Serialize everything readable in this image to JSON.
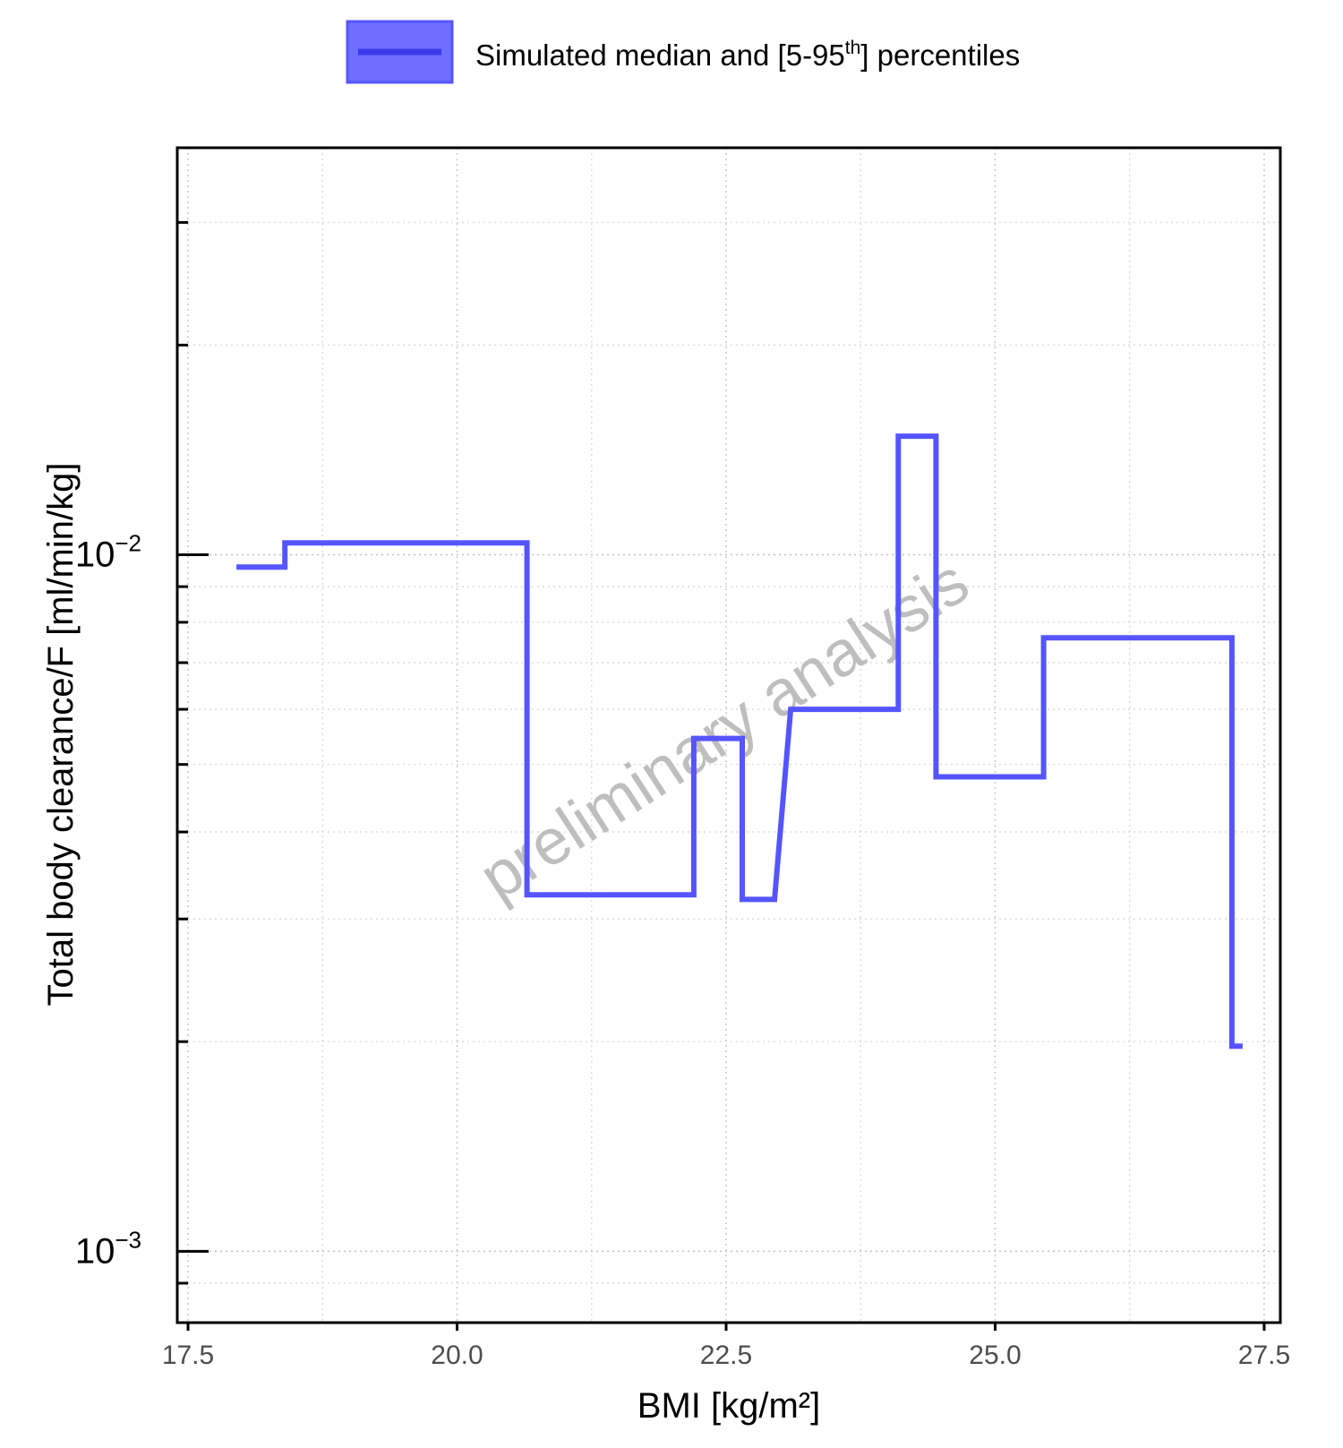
{
  "chart_data": {
    "type": "line",
    "xlabel": "BMI [kg/m²]",
    "ylabel": "Total body clearance/F [ml/min/kg]",
    "xlim": [
      17.4,
      27.65
    ],
    "ylim": [
      0.00079,
      0.0384
    ],
    "yscale": "log",
    "xticks": [
      17.5,
      20.0,
      22.5,
      25.0,
      27.5
    ],
    "xtick_labels": [
      "17.5",
      "20.0",
      "22.5",
      "25.0",
      "27.5"
    ],
    "yticks_major": [
      {
        "value": 0.01,
        "base": "10",
        "exp": "−2"
      },
      {
        "value": 0.001,
        "base": "10",
        "exp": "−3"
      }
    ],
    "yticks_minor": [
      0.03,
      0.02,
      0.009,
      0.008,
      0.007,
      0.006,
      0.005,
      0.004,
      0.003,
      0.002,
      0.0009
    ],
    "grid": true,
    "legend": {
      "position": "top-center",
      "label_main": "Simulated median and [5-95",
      "label_sup": "th",
      "label_end": "] percentiles",
      "color": "#5555ff"
    },
    "watermark": "preliminary analysis",
    "series": [
      {
        "color": "#5555ff",
        "x": [
          17.95,
          18.4,
          18.4,
          20.65,
          20.65,
          22.2,
          22.2,
          22.65,
          22.65,
          22.95,
          23.1,
          24.1,
          24.1,
          24.45,
          24.45,
          25.45,
          25.45,
          27.2,
          27.2,
          27.3
        ],
        "y": [
          0.0096,
          0.0096,
          0.0104,
          0.0104,
          0.00325,
          0.00325,
          0.00545,
          0.00545,
          0.0032,
          0.0032,
          0.006,
          0.006,
          0.0148,
          0.0148,
          0.0048,
          0.0048,
          0.0076,
          0.0076,
          0.00197,
          0.00197
        ]
      }
    ]
  }
}
